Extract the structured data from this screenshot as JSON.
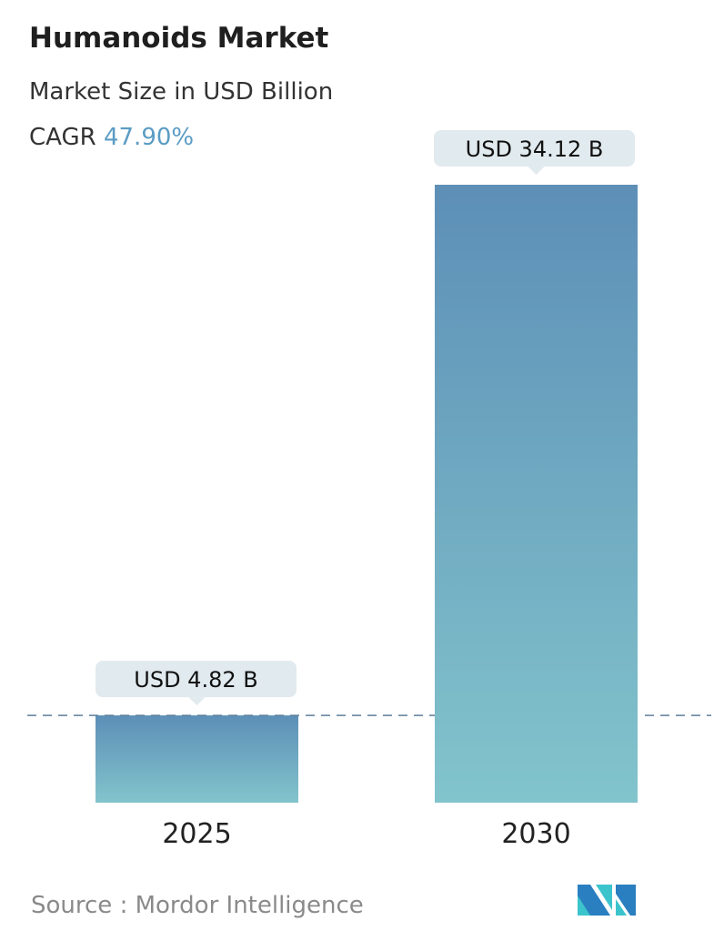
{
  "chart_data": {
    "type": "bar",
    "title": "Humanoids Market",
    "subtitle": "Market Size in USD Billion",
    "cagr_label": "CAGR",
    "cagr_value": "47.90%",
    "categories": [
      "2025",
      "2030"
    ],
    "values": [
      4.82,
      34.12
    ],
    "data_labels": [
      "USD 4.82 B",
      "USD 34.12 B"
    ],
    "ylim": [
      0,
      34.12
    ],
    "grid": false,
    "colors": {
      "bar_top": "#5d8fb7",
      "bar_bottom": "#82c4cc",
      "cagr": "#5b9cc4",
      "label_bg": "#e1eaee"
    }
  },
  "source": "Source :  Mordor Intelligence"
}
